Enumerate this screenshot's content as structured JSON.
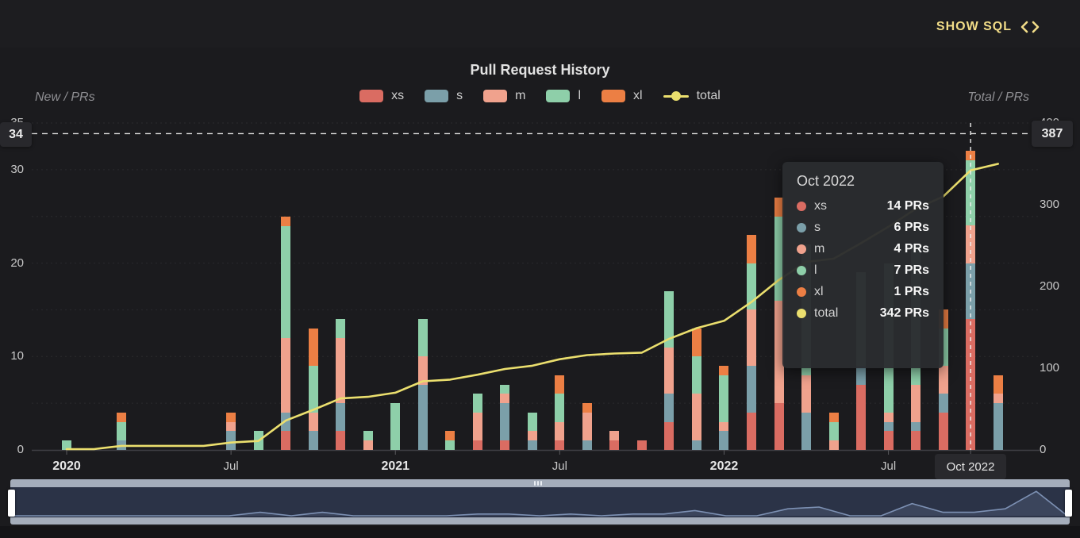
{
  "topbar": {
    "show_sql_label": "SHOW SQL",
    "sql_icon": "code-angle-brackets-icon"
  },
  "chart": {
    "title": "Pull Request History",
    "left_axis_name": "New / PRs",
    "right_axis_name": "Total / PRs",
    "left_ticks": [
      0,
      10,
      20,
      30,
      35
    ],
    "right_ticks": [
      0,
      100,
      200,
      300,
      400
    ],
    "x_labels": [
      {
        "label": "2020",
        "month_index": 0,
        "style": "year"
      },
      {
        "label": "Jul",
        "month_index": 6,
        "style": "mid"
      },
      {
        "label": "2021",
        "month_index": 12,
        "style": "year"
      },
      {
        "label": "Jul",
        "month_index": 18,
        "style": "mid"
      },
      {
        "label": "2022",
        "month_index": 24,
        "style": "year"
      },
      {
        "label": "Jul",
        "month_index": 30,
        "style": "mid"
      },
      {
        "label": "Oct 2022",
        "month_index": 33,
        "style": "badge"
      }
    ],
    "axis_pointer": {
      "left_label": "34",
      "right_label": "387",
      "x_label": "Oct 2022",
      "x_index": 33,
      "left_value": 34,
      "right_value": 387
    }
  },
  "legend": {
    "items": [
      {
        "name": "xs",
        "color": "#da6c62",
        "type": "bar"
      },
      {
        "name": "s",
        "color": "#7b9fa9",
        "type": "bar"
      },
      {
        "name": "m",
        "color": "#f0a28d",
        "type": "bar"
      },
      {
        "name": "l",
        "color": "#8ecfa9",
        "type": "bar"
      },
      {
        "name": "xl",
        "color": "#ec7f44",
        "type": "bar"
      },
      {
        "name": "total",
        "color": "#ebdf6e",
        "type": "line"
      }
    ]
  },
  "chart_data": {
    "type": "bar",
    "stacked": true,
    "title": "Pull Request History",
    "x_axis": "month",
    "left_axis": {
      "label": "New / PRs",
      "range": [
        0,
        35
      ]
    },
    "right_axis": {
      "label": "Total / PRs",
      "range": [
        0,
        400
      ]
    },
    "grid": "horizontal-dotted",
    "legend_position": "top-center",
    "categories": [
      "Jan 2020",
      "Feb 2020",
      "Mar 2020",
      "Apr 2020",
      "May 2020",
      "Jun 2020",
      "Jul 2020",
      "Aug 2020",
      "Sep 2020",
      "Oct 2020",
      "Nov 2020",
      "Dec 2020",
      "Jan 2021",
      "Feb 2021",
      "Mar 2021",
      "Apr 2021",
      "May 2021",
      "Jun 2021",
      "Jul 2021",
      "Aug 2021",
      "Sep 2021",
      "Oct 2021",
      "Nov 2021",
      "Dec 2021",
      "Jan 2022",
      "Feb 2022",
      "Mar 2022",
      "Apr 2022",
      "May 2022",
      "Jun 2022",
      "Jul 2022",
      "Aug 2022",
      "Sep 2022",
      "Oct 2022",
      "Nov 2022"
    ],
    "series": [
      {
        "name": "xs",
        "axis": "left",
        "values": [
          0,
          0,
          0,
          0,
          0,
          0,
          0,
          0,
          2,
          0,
          2,
          0,
          0,
          0,
          0,
          1,
          1,
          0,
          1,
          0,
          1,
          1,
          3,
          0,
          0,
          4,
          5,
          0,
          0,
          7,
          2,
          2,
          4,
          14,
          0
        ]
      },
      {
        "name": "s",
        "axis": "left",
        "values": [
          0,
          0,
          1,
          0,
          0,
          0,
          2,
          0,
          2,
          2,
          3,
          0,
          0,
          7,
          0,
          0,
          4,
          1,
          0,
          1,
          0,
          0,
          3,
          1,
          2,
          5,
          0,
          4,
          0,
          2,
          1,
          1,
          2,
          6,
          5
        ]
      },
      {
        "name": "m",
        "axis": "left",
        "values": [
          0,
          0,
          0,
          0,
          0,
          0,
          1,
          0,
          8,
          2,
          7,
          1,
          0,
          3,
          0,
          3,
          1,
          1,
          2,
          3,
          1,
          0,
          5,
          5,
          1,
          6,
          11,
          4,
          1,
          0,
          1,
          4,
          3,
          4,
          1
        ]
      },
      {
        "name": "l",
        "axis": "left",
        "values": [
          1,
          0,
          2,
          0,
          0,
          0,
          0,
          2,
          12,
          5,
          2,
          1,
          5,
          4,
          1,
          2,
          1,
          2,
          3,
          0,
          0,
          0,
          6,
          4,
          5,
          5,
          9,
          14,
          2,
          10,
          16,
          15,
          4,
          7,
          0
        ]
      },
      {
        "name": "xl",
        "axis": "left",
        "values": [
          0,
          0,
          1,
          0,
          0,
          0,
          1,
          0,
          1,
          4,
          0,
          0,
          0,
          0,
          1,
          0,
          0,
          0,
          2,
          1,
          0,
          0,
          0,
          3,
          1,
          3,
          2,
          0,
          1,
          0,
          0,
          0,
          2,
          1,
          2
        ]
      }
    ],
    "line_series": {
      "name": "total",
      "axis": "right",
      "type": "line",
      "values": [
        1,
        1,
        5,
        5,
        5,
        5,
        9,
        11,
        36,
        49,
        63,
        65,
        70,
        84,
        86,
        92,
        99,
        103,
        111,
        116,
        118,
        119,
        136,
        149,
        158,
        181,
        208,
        230,
        234,
        253,
        273,
        295,
        310,
        342,
        350
      ]
    }
  },
  "tooltip": {
    "title": "Oct 2022",
    "rows": [
      {
        "series": "xs",
        "value": "14 PRs"
      },
      {
        "series": "s",
        "value": "6 PRs"
      },
      {
        "series": "m",
        "value": "4 PRs"
      },
      {
        "series": "l",
        "value": "7 PRs"
      },
      {
        "series": "xl",
        "value": "1 PRs"
      },
      {
        "series": "total",
        "value": "342 PRs"
      }
    ]
  }
}
